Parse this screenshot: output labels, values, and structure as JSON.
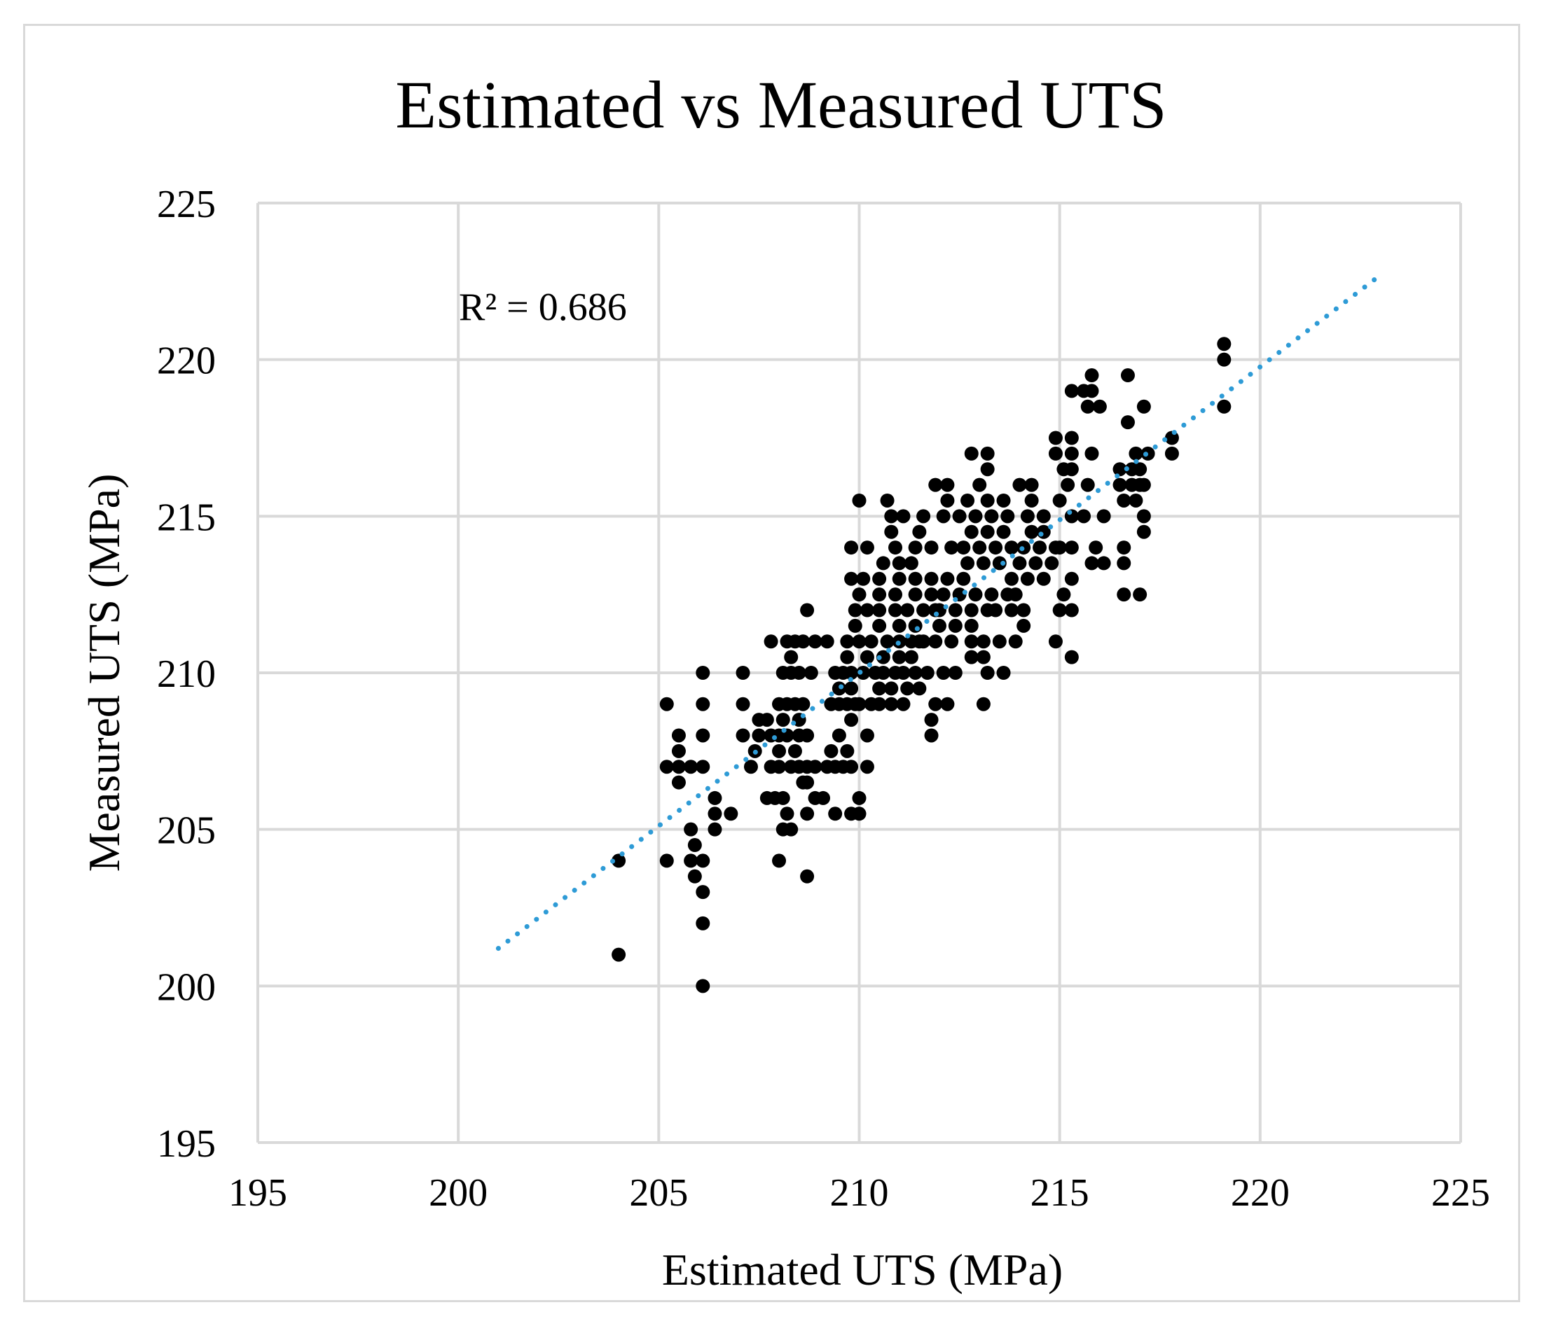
{
  "chart_data": {
    "type": "scatter",
    "title": "Estimated vs Measured UTS",
    "xlabel": "Estimated UTS (MPa)",
    "ylabel": "Measured UTS (MPa)",
    "xlim": [
      195,
      225
    ],
    "ylim": [
      195,
      225
    ],
    "xticks": [
      195,
      200,
      205,
      210,
      215,
      220,
      225
    ],
    "yticks": [
      195,
      200,
      205,
      210,
      215,
      220,
      225
    ],
    "grid": true,
    "legend": "none",
    "annotation": "R² = 0.686",
    "colors": {
      "points": "#000000",
      "trendline": "#2e9bd6",
      "grid": "#d9d9d9"
    },
    "trendline": {
      "style": "dotted",
      "x": [
        201,
        223
      ],
      "y": [
        201.2,
        222.7
      ]
    },
    "series": [
      {
        "points": [
          [
            204,
            201
          ],
          [
            206.1,
            200
          ],
          [
            204,
            204
          ],
          [
            205.2,
            204
          ],
          [
            205.8,
            204
          ],
          [
            206.1,
            204
          ],
          [
            205.9,
            203.5
          ],
          [
            206.1,
            203
          ],
          [
            206.1,
            202
          ],
          [
            205.9,
            204.5
          ],
          [
            205.8,
            205
          ],
          [
            206.4,
            205
          ],
          [
            206.4,
            205.5
          ],
          [
            206.4,
            206
          ],
          [
            205.2,
            207
          ],
          [
            205.5,
            207
          ],
          [
            205.8,
            207
          ],
          [
            206.1,
            207
          ],
          [
            205.5,
            206.5
          ],
          [
            205.5,
            207.5
          ],
          [
            205.5,
            208
          ],
          [
            205.2,
            209
          ],
          [
            206.1,
            208
          ],
          [
            206.1,
            209
          ],
          [
            206.1,
            210
          ],
          [
            206.8,
            205.5
          ],
          [
            207.1,
            208
          ],
          [
            207.1,
            209
          ],
          [
            207.1,
            210
          ],
          [
            207.3,
            207
          ],
          [
            207.4,
            207.5
          ],
          [
            207.5,
            208
          ],
          [
            207.5,
            208.5
          ],
          [
            207.7,
            206
          ],
          [
            207.9,
            206
          ],
          [
            208.1,
            206
          ],
          [
            208.2,
            205.5
          ],
          [
            208.3,
            205
          ],
          [
            208.1,
            205
          ],
          [
            208,
            204
          ],
          [
            208.7,
            203.5
          ],
          [
            207.8,
            207
          ],
          [
            208,
            207
          ],
          [
            208.3,
            207
          ],
          [
            208.5,
            207
          ],
          [
            208.7,
            207
          ],
          [
            208.9,
            207
          ],
          [
            209.2,
            207
          ],
          [
            209.4,
            207
          ],
          [
            209.6,
            207
          ],
          [
            207.8,
            208
          ],
          [
            208,
            208
          ],
          [
            208.2,
            208
          ],
          [
            208.5,
            208
          ],
          [
            208.7,
            208
          ],
          [
            208,
            209
          ],
          [
            208.2,
            209
          ],
          [
            208.4,
            209
          ],
          [
            208.6,
            209
          ],
          [
            208.1,
            210
          ],
          [
            208.3,
            210
          ],
          [
            208.5,
            210
          ],
          [
            208.8,
            210
          ],
          [
            207.8,
            211
          ],
          [
            208.2,
            211
          ],
          [
            208.4,
            211
          ],
          [
            208.6,
            211
          ],
          [
            208.9,
            211
          ],
          [
            209.2,
            211
          ],
          [
            208.3,
            210.5
          ],
          [
            208.7,
            212
          ],
          [
            207.7,
            208.5
          ],
          [
            208.1,
            208.5
          ],
          [
            208.5,
            208.5
          ],
          [
            208,
            207.5
          ],
          [
            208.4,
            207.5
          ],
          [
            208.6,
            206.5
          ],
          [
            208.7,
            206.5
          ],
          [
            208.9,
            206
          ],
          [
            209.1,
            206
          ],
          [
            208.7,
            205.5
          ],
          [
            209.4,
            205.5
          ],
          [
            209.3,
            207.5
          ],
          [
            209.8,
            205.5
          ],
          [
            210,
            205.5
          ],
          [
            210,
            206
          ],
          [
            210.2,
            207
          ],
          [
            209.8,
            207
          ],
          [
            209.7,
            207.5
          ],
          [
            210.2,
            208
          ],
          [
            209.5,
            208
          ],
          [
            209.8,
            208.5
          ],
          [
            210,
            209
          ],
          [
            209.3,
            209
          ],
          [
            209.5,
            209
          ],
          [
            209.7,
            209
          ],
          [
            209.9,
            209
          ],
          [
            210.3,
            209
          ],
          [
            210.5,
            209
          ],
          [
            210.8,
            209
          ],
          [
            211.1,
            209
          ],
          [
            209.4,
            210
          ],
          [
            209.6,
            210
          ],
          [
            209.8,
            210
          ],
          [
            210.1,
            210
          ],
          [
            210.4,
            210
          ],
          [
            210.6,
            210
          ],
          [
            210.9,
            210
          ],
          [
            211.1,
            210
          ],
          [
            211.4,
            210
          ],
          [
            209.5,
            209.5
          ],
          [
            209.8,
            209.5
          ],
          [
            210.5,
            209.5
          ],
          [
            210.8,
            209.5
          ],
          [
            211.2,
            209.5
          ],
          [
            211.5,
            209.5
          ],
          [
            209.7,
            210.5
          ],
          [
            210.2,
            210.5
          ],
          [
            210.6,
            210.5
          ],
          [
            211,
            210.5
          ],
          [
            211.3,
            210.5
          ],
          [
            209.7,
            211
          ],
          [
            210,
            211
          ],
          [
            210.3,
            211
          ],
          [
            210.7,
            211
          ],
          [
            211,
            211
          ],
          [
            211.3,
            211
          ],
          [
            211.6,
            211
          ],
          [
            209.9,
            211.5
          ],
          [
            210.5,
            211.5
          ],
          [
            211,
            211.5
          ],
          [
            211.4,
            211.5
          ],
          [
            209.9,
            212
          ],
          [
            210.2,
            212
          ],
          [
            210.5,
            212
          ],
          [
            210.9,
            212
          ],
          [
            211.2,
            212
          ],
          [
            211.6,
            212
          ],
          [
            211.9,
            212
          ],
          [
            210,
            212.5
          ],
          [
            210.5,
            212.5
          ],
          [
            210.9,
            212.5
          ],
          [
            211.4,
            212.5
          ],
          [
            211.8,
            212.5
          ],
          [
            209.8,
            213
          ],
          [
            210.1,
            213
          ],
          [
            210.5,
            213
          ],
          [
            211,
            213
          ],
          [
            211.4,
            213
          ],
          [
            211.8,
            213
          ],
          [
            212.2,
            213
          ],
          [
            212.6,
            213
          ],
          [
            210.6,
            213.5
          ],
          [
            211,
            213.5
          ],
          [
            211.3,
            213.5
          ],
          [
            209.8,
            214
          ],
          [
            210.2,
            214
          ],
          [
            210.9,
            214
          ],
          [
            211.4,
            214
          ],
          [
            211.8,
            214
          ],
          [
            210.8,
            214.5
          ],
          [
            211.5,
            214.5
          ],
          [
            210.8,
            215
          ],
          [
            211.1,
            215
          ],
          [
            211.6,
            215
          ],
          [
            210,
            215.5
          ],
          [
            210.7,
            215.5
          ],
          [
            211.5,
            211
          ],
          [
            211.9,
            211
          ],
          [
            212.3,
            211
          ],
          [
            211.7,
            210
          ],
          [
            212.1,
            210
          ],
          [
            212.4,
            210
          ],
          [
            211.9,
            209
          ],
          [
            212.2,
            209
          ],
          [
            211.8,
            208.5
          ],
          [
            211.8,
            208
          ],
          [
            212,
            211.5
          ],
          [
            212.4,
            211.5
          ],
          [
            212.8,
            211.5
          ],
          [
            212,
            212
          ],
          [
            212.4,
            212
          ],
          [
            212.8,
            212
          ],
          [
            213.2,
            212
          ],
          [
            212.1,
            212.5
          ],
          [
            212.5,
            212.5
          ],
          [
            212.9,
            212.5
          ],
          [
            213.3,
            212.5
          ],
          [
            213.7,
            212.5
          ],
          [
            212.3,
            214
          ],
          [
            212.6,
            214
          ],
          [
            213,
            214
          ],
          [
            213.4,
            214
          ],
          [
            213.8,
            214
          ],
          [
            212.1,
            215
          ],
          [
            212.5,
            215
          ],
          [
            212.9,
            215
          ],
          [
            213.3,
            215
          ],
          [
            213.7,
            215
          ],
          [
            212.2,
            215.5
          ],
          [
            212.7,
            215.5
          ],
          [
            213.2,
            215.5
          ],
          [
            213.6,
            215.5
          ],
          [
            211.9,
            216
          ],
          [
            212.2,
            216
          ],
          [
            213,
            216
          ],
          [
            212.8,
            214.5
          ],
          [
            213.2,
            214.5
          ],
          [
            213.6,
            214.5
          ],
          [
            212.7,
            213.5
          ],
          [
            213.1,
            213.5
          ],
          [
            213.5,
            213.5
          ],
          [
            212.8,
            210.5
          ],
          [
            213.1,
            210.5
          ],
          [
            212.8,
            211
          ],
          [
            213.1,
            211
          ],
          [
            213.5,
            211
          ],
          [
            213.9,
            211
          ],
          [
            213.2,
            210
          ],
          [
            213.6,
            210
          ],
          [
            213.1,
            209
          ],
          [
            213.4,
            212
          ],
          [
            213.8,
            212
          ],
          [
            214.1,
            212
          ],
          [
            213.9,
            212.5
          ],
          [
            214.1,
            211.5
          ],
          [
            213.8,
            213
          ],
          [
            214.2,
            213
          ],
          [
            214.6,
            213
          ],
          [
            214,
            213.5
          ],
          [
            214.4,
            213.5
          ],
          [
            214.8,
            213.5
          ],
          [
            214.1,
            214
          ],
          [
            214.5,
            214
          ],
          [
            214.9,
            214
          ],
          [
            214.2,
            215
          ],
          [
            214.6,
            215
          ],
          [
            214.3,
            215.5
          ],
          [
            214,
            216
          ],
          [
            214.3,
            216
          ],
          [
            214.6,
            214.5
          ],
          [
            214.3,
            214.5
          ],
          [
            213.2,
            216.5
          ],
          [
            213.2,
            217
          ],
          [
            212.8,
            217
          ],
          [
            214.9,
            211
          ],
          [
            215.3,
            210.5
          ],
          [
            215,
            212
          ],
          [
            215.3,
            212
          ],
          [
            215.1,
            212.5
          ],
          [
            215.3,
            213
          ],
          [
            215,
            214
          ],
          [
            215.3,
            214
          ],
          [
            215.3,
            215
          ],
          [
            215,
            215.5
          ],
          [
            215.2,
            216
          ],
          [
            215.1,
            216.5
          ],
          [
            215.3,
            216.5
          ],
          [
            214.9,
            217
          ],
          [
            215.3,
            217
          ],
          [
            214.9,
            217.5
          ],
          [
            215.3,
            217.5
          ],
          [
            215.3,
            219
          ],
          [
            215.6,
            219
          ],
          [
            215.8,
            219
          ],
          [
            215.7,
            218.5
          ],
          [
            216,
            218.5
          ],
          [
            215.8,
            219.5
          ],
          [
            215.8,
            217
          ],
          [
            215.7,
            216
          ],
          [
            215.6,
            215
          ],
          [
            216.1,
            215
          ],
          [
            215.9,
            214
          ],
          [
            215.8,
            213.5
          ],
          [
            216.1,
            213.5
          ],
          [
            216.6,
            212.5
          ],
          [
            217,
            212.5
          ],
          [
            216.6,
            213.5
          ],
          [
            216.6,
            214
          ],
          [
            216.6,
            215.5
          ],
          [
            216.9,
            215.5
          ],
          [
            216.8,
            216
          ],
          [
            217,
            216
          ],
          [
            216.5,
            216
          ],
          [
            216.5,
            216.5
          ],
          [
            216.8,
            216.5
          ],
          [
            217,
            216.5
          ],
          [
            216.9,
            217
          ],
          [
            217.2,
            217
          ],
          [
            217.1,
            216
          ],
          [
            217.1,
            215
          ],
          [
            217.1,
            214.5
          ],
          [
            216.7,
            218
          ],
          [
            217.1,
            218.5
          ],
          [
            216.7,
            219.5
          ],
          [
            217.8,
            217
          ],
          [
            217.8,
            217.5
          ],
          [
            219.1,
            218.5
          ],
          [
            219.1,
            220
          ],
          [
            219.1,
            220.5
          ]
        ]
      }
    ]
  }
}
